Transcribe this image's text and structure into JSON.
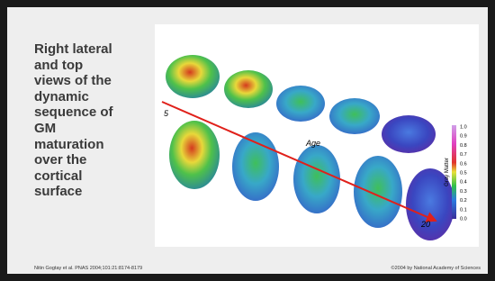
{
  "slide": {
    "heading_lines": [
      "Right lateral",
      "and top",
      "views of the",
      "dynamic",
      "sequence of",
      "GM",
      "maturation",
      "over the",
      "cortical",
      "surface"
    ],
    "figure": {
      "start_label": "5",
      "axis_label": "Age",
      "end_label": "20",
      "colorbar_title": "Gray Matter",
      "colorbar_ticks": [
        "1.0",
        "0.9",
        "0.8",
        "0.7",
        "0.6",
        "0.5",
        "0.4",
        "0.3",
        "0.2",
        "0.1",
        "0.0"
      ]
    },
    "footer_left": "Nitin Gogtay et al. PNAS 2004;101:21:8174-8179",
    "footer_right": "©2004 by National Academy of Sciences"
  }
}
